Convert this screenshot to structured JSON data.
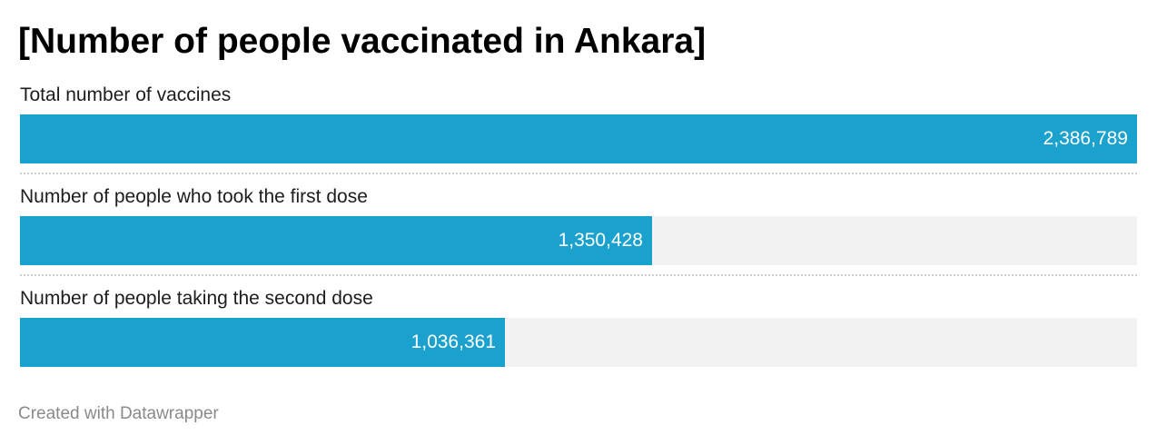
{
  "chart_data": {
    "type": "bar",
    "title": "[Number of people vaccinated in Ankara]",
    "categories": [
      "Total number of vaccines",
      "Number of people who took the first dose",
      "Number of people taking the second dose"
    ],
    "values": [
      2386789,
      1350428,
      1036361
    ],
    "value_labels": [
      "2,386,789",
      "1,350,428",
      "1,036,361"
    ],
    "xlim": [
      0,
      2386789
    ],
    "orientation": "horizontal",
    "bar_color": "#1ba1ce",
    "track_color": "#f2f2f2",
    "grid": false
  },
  "footer": {
    "credit": "Created with Datawrapper"
  }
}
